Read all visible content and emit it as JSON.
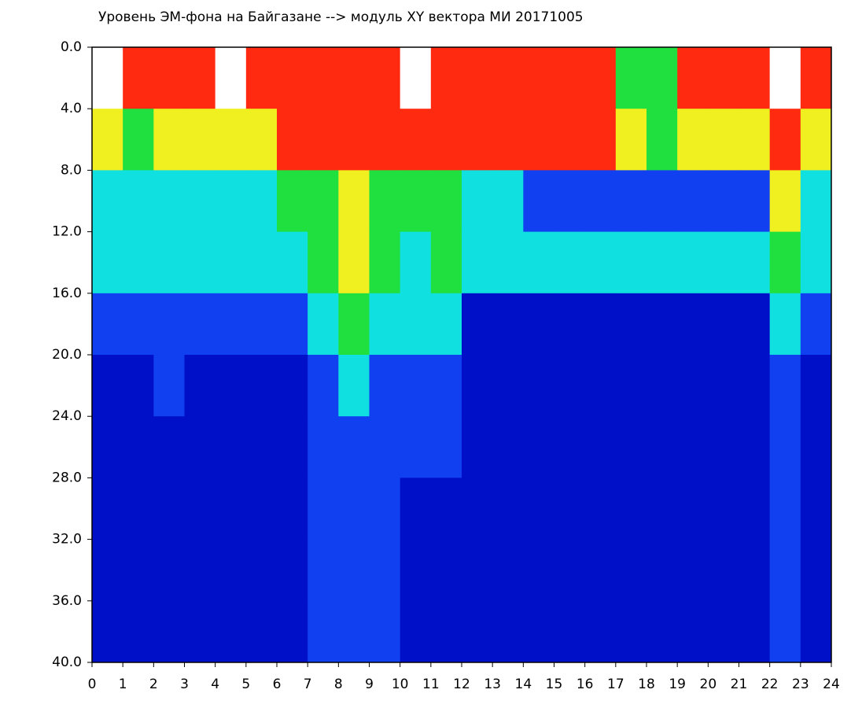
{
  "chart_data": {
    "type": "heatmap",
    "title": "Уровень ЭМ-фона на Байгазане  --> модуль XY вектора МИ  20171005",
    "x_bins": [
      0,
      1,
      2,
      3,
      4,
      5,
      6,
      7,
      8,
      9,
      10,
      11,
      12,
      13,
      14,
      15,
      16,
      17,
      18,
      19,
      20,
      21,
      22,
      23,
      24
    ],
    "y_bins": [
      0,
      4,
      8,
      12,
      16,
      20,
      24,
      28,
      32,
      36,
      40
    ],
    "colorscale": [
      "#ffffff",
      "#ff2a10",
      "#f0f020",
      "#20e040",
      "#10e0e0",
      "#1040f0",
      "#0010c8"
    ],
    "z": [
      [
        0,
        1,
        1,
        1,
        0,
        1,
        1,
        1,
        1,
        1,
        0,
        1,
        1,
        1,
        1,
        1,
        1,
        3,
        3,
        1,
        1,
        1,
        0,
        1
      ],
      [
        2,
        3,
        2,
        2,
        2,
        2,
        1,
        1,
        1,
        1,
        1,
        1,
        1,
        1,
        1,
        1,
        1,
        2,
        3,
        2,
        2,
        2,
        1,
        2
      ],
      [
        4,
        4,
        4,
        4,
        4,
        4,
        3,
        3,
        2,
        3,
        3,
        3,
        4,
        4,
        5,
        5,
        5,
        5,
        5,
        5,
        5,
        5,
        2,
        4
      ],
      [
        4,
        4,
        4,
        4,
        4,
        4,
        4,
        3,
        2,
        3,
        4,
        3,
        4,
        4,
        4,
        4,
        4,
        4,
        4,
        4,
        4,
        4,
        3,
        4
      ],
      [
        5,
        5,
        5,
        5,
        5,
        5,
        5,
        4,
        3,
        4,
        4,
        4,
        6,
        6,
        6,
        6,
        6,
        6,
        6,
        6,
        6,
        6,
        4,
        5
      ],
      [
        6,
        6,
        5,
        6,
        6,
        6,
        6,
        5,
        4,
        5,
        5,
        5,
        6,
        6,
        6,
        6,
        6,
        6,
        6,
        6,
        6,
        6,
        5,
        6
      ],
      [
        6,
        6,
        6,
        6,
        6,
        6,
        6,
        5,
        5,
        5,
        5,
        5,
        6,
        6,
        6,
        6,
        6,
        6,
        6,
        6,
        6,
        6,
        5,
        6
      ],
      [
        6,
        6,
        6,
        6,
        6,
        6,
        6,
        5,
        5,
        5,
        6,
        6,
        6,
        6,
        6,
        6,
        6,
        6,
        6,
        6,
        6,
        6,
        5,
        6
      ],
      [
        6,
        6,
        6,
        6,
        6,
        6,
        6,
        5,
        5,
        5,
        6,
        6,
        6,
        6,
        6,
        6,
        6,
        6,
        6,
        6,
        6,
        6,
        5,
        6
      ],
      [
        6,
        6,
        6,
        6,
        6,
        6,
        6,
        5,
        5,
        5,
        6,
        6,
        6,
        6,
        6,
        6,
        6,
        6,
        6,
        6,
        6,
        6,
        5,
        6
      ]
    ],
    "xlim": [
      0,
      24
    ],
    "xticks": [
      0,
      1,
      2,
      3,
      4,
      5,
      6,
      7,
      8,
      9,
      10,
      11,
      12,
      13,
      14,
      15,
      16,
      17,
      18,
      19,
      20,
      21,
      22,
      23,
      24
    ],
    "ylim": [
      40,
      0
    ],
    "yticks": [
      {
        "value": 0,
        "label": "0.0"
      },
      {
        "value": 4,
        "label": "4.0"
      },
      {
        "value": 8,
        "label": "8.0"
      },
      {
        "value": 12,
        "label": "12.0"
      },
      {
        "value": 16,
        "label": "16.0"
      },
      {
        "value": 20,
        "label": "20.0"
      },
      {
        "value": 24,
        "label": "24.0"
      },
      {
        "value": 28,
        "label": "28.0"
      },
      {
        "value": 32,
        "label": "32.0"
      },
      {
        "value": 36,
        "label": "36.0"
      },
      {
        "value": 40,
        "label": "40.0"
      }
    ]
  }
}
